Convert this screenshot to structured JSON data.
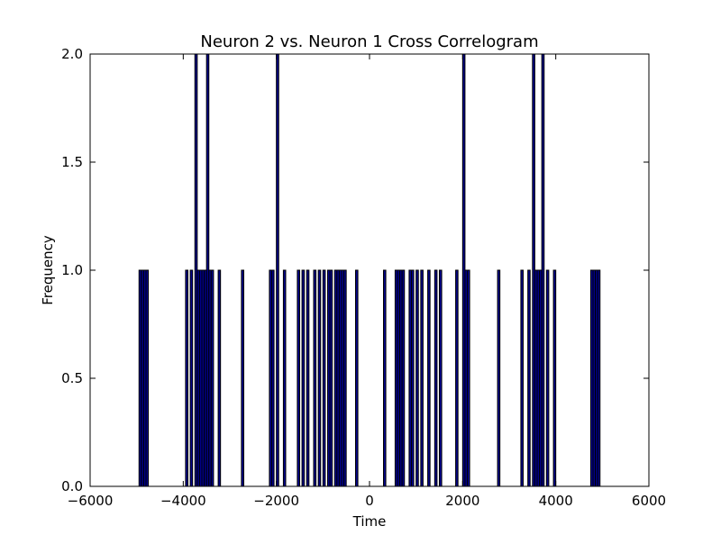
{
  "chart_data": {
    "type": "bar",
    "title": "Neuron 2 vs. Neuron 1 Cross Correlogram",
    "xlabel": "Time",
    "ylabel": "Frequency",
    "xlim": [
      -6000,
      6000
    ],
    "ylim": [
      0,
      2
    ],
    "xticks": [
      -6000,
      -4000,
      -2000,
      0,
      2000,
      4000,
      6000
    ],
    "yticks": [
      0.0,
      0.5,
      1.0,
      1.5,
      2.0
    ],
    "xtick_labels": [
      "−6000",
      "−4000",
      "−2000",
      "0",
      "2000",
      "4000",
      "6000"
    ],
    "ytick_labels": [
      "0.0",
      "0.5",
      "1.0",
      "1.5",
      "2.0"
    ],
    "bin_width": 50,
    "bar_color": "#00008b",
    "edge_color": "#000000",
    "grid": false,
    "legend": "none",
    "x": [
      -4950,
      -4900,
      -4850,
      -4800,
      -3950,
      -3850,
      -3750,
      -3700,
      -3650,
      -3600,
      -3550,
      -3500,
      -3450,
      -3400,
      -3250,
      -2750,
      -2150,
      -2100,
      -2000,
      -1850,
      -1550,
      -1450,
      -1350,
      -1200,
      -1100,
      -1000,
      -900,
      -850,
      -750,
      -700,
      -650,
      -600,
      -550,
      -300,
      300,
      550,
      600,
      650,
      700,
      850,
      900,
      1000,
      1100,
      1250,
      1400,
      1500,
      1850,
      2000,
      2050,
      2100,
      2750,
      3250,
      3400,
      3500,
      3550,
      3600,
      3650,
      3700,
      3800,
      3950,
      4750,
      4800,
      4850,
      4900
    ],
    "values": [
      1,
      1,
      1,
      1,
      1,
      1,
      2,
      1,
      1,
      1,
      1,
      2,
      1,
      1,
      1,
      1,
      1,
      1,
      2,
      1,
      1,
      1,
      1,
      1,
      1,
      1,
      1,
      1,
      1,
      1,
      1,
      1,
      1,
      1,
      1,
      1,
      1,
      1,
      1,
      1,
      1,
      1,
      1,
      1,
      1,
      1,
      1,
      2,
      1,
      1,
      1,
      1,
      1,
      2,
      1,
      1,
      1,
      2,
      1,
      1,
      1,
      1,
      1,
      1
    ]
  }
}
